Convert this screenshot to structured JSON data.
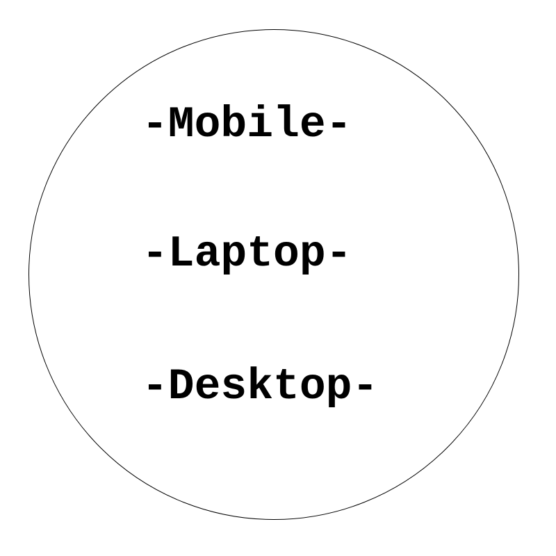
{
  "diagram": {
    "items": [
      {
        "label": "-Mobile-"
      },
      {
        "label": "-Laptop-"
      },
      {
        "label": "-Desktop-"
      }
    ],
    "colors": {
      "stroke": "#000000",
      "text": "#000000",
      "background": "#ffffff"
    }
  }
}
